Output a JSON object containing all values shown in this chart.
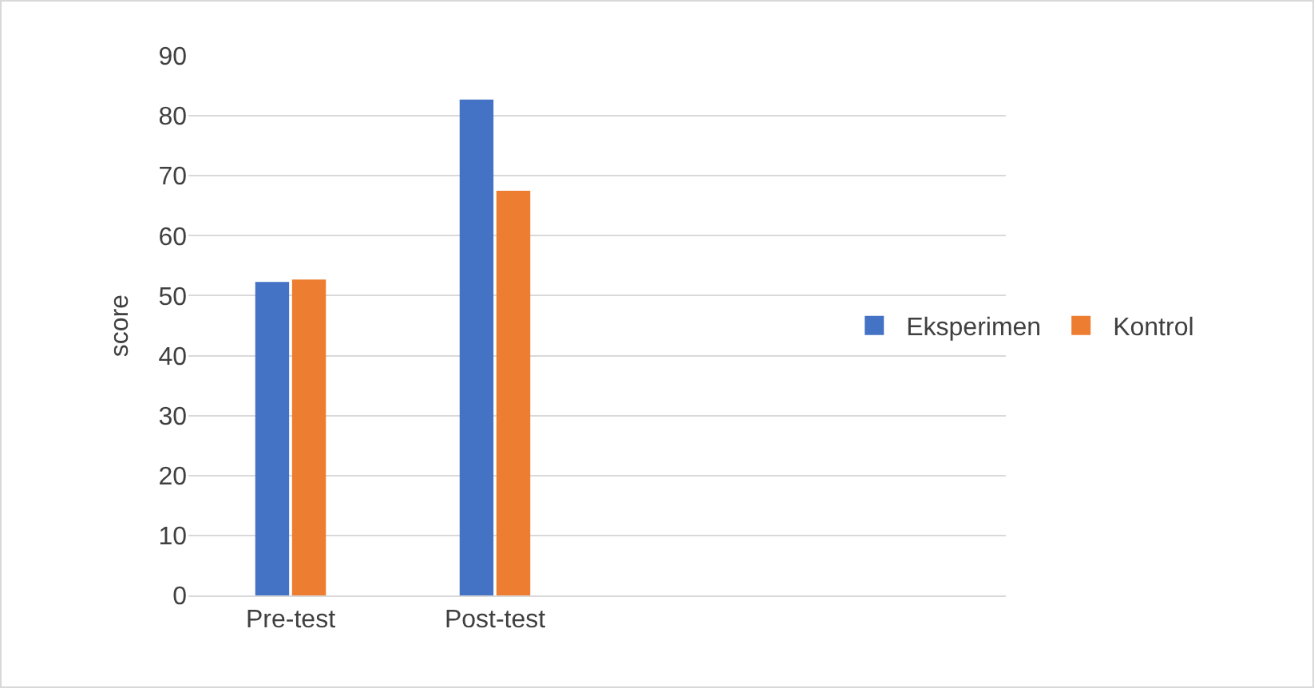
{
  "chart_data": {
    "type": "bar",
    "ylabel": "score",
    "categories": [
      "Pre-test",
      "Post-test",
      null,
      null
    ],
    "series": [
      {
        "name": "Eksperimen",
        "color": "#4472c4",
        "values": [
          52.3,
          82.7,
          null,
          null
        ]
      },
      {
        "name": "Kontrol",
        "color": "#ed7d31",
        "values": [
          52.7,
          67.5,
          null,
          null
        ]
      }
    ],
    "ylim": [
      0,
      90
    ],
    "yticks": [
      0,
      10,
      20,
      30,
      40,
      50,
      60,
      70,
      80,
      90
    ],
    "grid": "y",
    "legend": "right"
  }
}
